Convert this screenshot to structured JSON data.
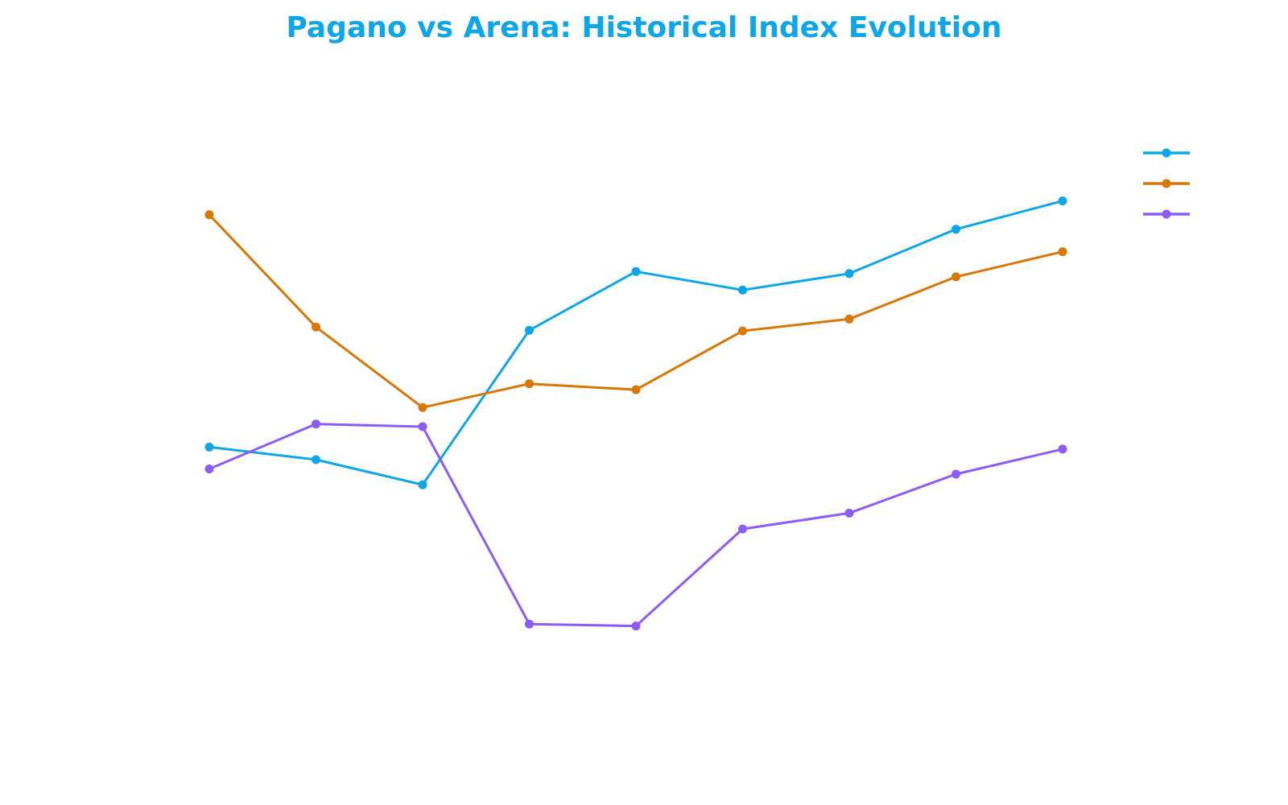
{
  "chart_data": {
    "type": "line",
    "title": "Pagano vs Arena: Historical Index Evolution",
    "xlabel": "",
    "ylabel": "",
    "grid": false,
    "legend_position": "top-right",
    "x": [
      1,
      2,
      3,
      4,
      5,
      6,
      7,
      8,
      9
    ],
    "ylim": [
      0,
      100
    ],
    "series": [
      {
        "values": [
          46.9,
          45.0,
          41.2,
          64.6,
          73.5,
          70.7,
          73.2,
          79.9,
          84.2
        ],
        "color": "#0ea5e9"
      },
      {
        "values": [
          82.1,
          65.1,
          52.9,
          56.5,
          55.6,
          64.5,
          66.3,
          72.7,
          76.5
        ],
        "color": "#d97706"
      },
      {
        "values": [
          43.6,
          50.4,
          50.0,
          20.1,
          19.8,
          34.5,
          36.9,
          42.8,
          46.6
        ],
        "color": "#8b5cf6"
      }
    ]
  }
}
